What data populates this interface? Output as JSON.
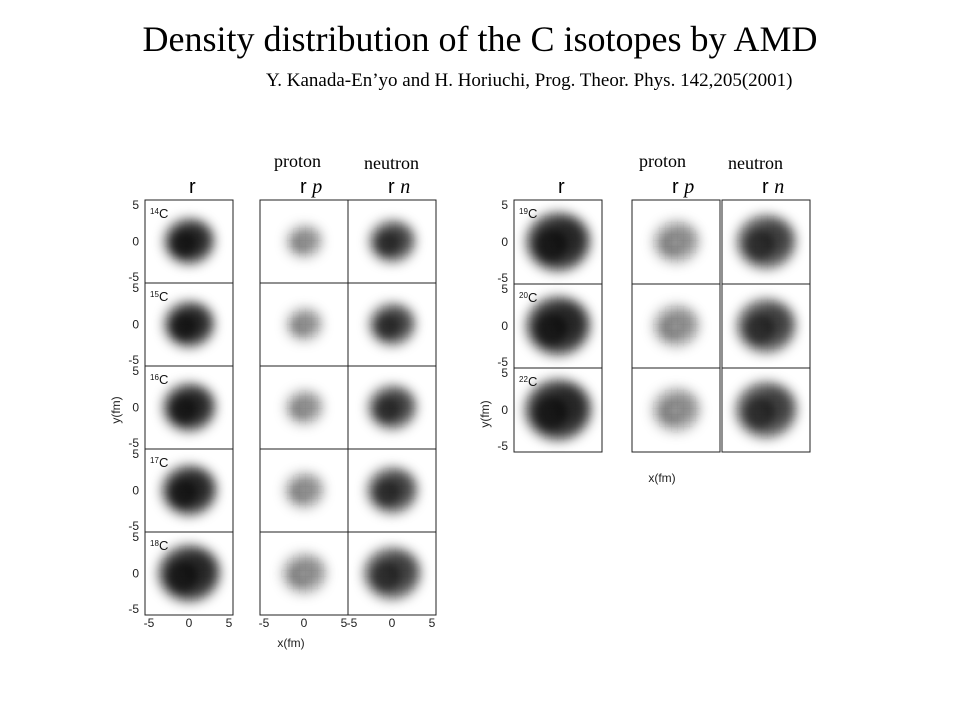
{
  "title": "Density distribution of the C isotopes by AMD",
  "citation": "Y. Kanada-En’yo and H. Horiuchi, Prog. Theor. Phys. 142,205(2001)",
  "column_headers": {
    "proton": "proton",
    "neutron": "neutron",
    "r": "r",
    "rp_base": "r",
    "rp_sub": "p",
    "rn_base": "r",
    "rn_sub": "n"
  },
  "axes": {
    "y_label": "y(fm)",
    "x_label": "x(fm)",
    "y_ticks": [
      "5",
      "0",
      "-5"
    ],
    "x_ticks": [
      "-5",
      "0",
      "5"
    ]
  },
  "left_panel": {
    "isotopes": [
      {
        "mass": "14",
        "element": "C"
      },
      {
        "mass": "15",
        "element": "C"
      },
      {
        "mass": "16",
        "element": "C"
      },
      {
        "mass": "17",
        "element": "C"
      },
      {
        "mass": "18",
        "element": "C"
      }
    ]
  },
  "right_panel": {
    "isotopes": [
      {
        "mass": "19",
        "element": "C"
      },
      {
        "mass": "20",
        "element": "C"
      },
      {
        "mass": "22",
        "element": "C"
      }
    ]
  }
}
